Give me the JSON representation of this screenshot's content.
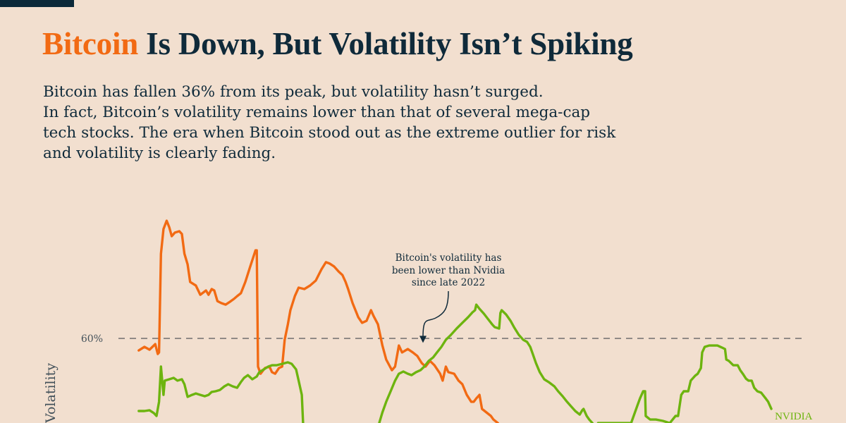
{
  "header": {
    "title_accent": "Bitcoin",
    "title_rest": " Is Down, But Volatility Isn’t Spiking",
    "subtitle_lines": [
      "Bitcoin has fallen 36% from its peak, but volatility hasn’t surged.",
      "In fact, Bitcoin’s volatility remains lower than that of several mega-cap",
      "tech stocks. The era when Bitcoin stood out as the extreme outlier for risk",
      "and volatility is clearly fading."
    ]
  },
  "colors": {
    "bitcoin": "#f26a13",
    "nvidia": "#6db40f",
    "text": "#0f2a3a",
    "accent": "#f26a13",
    "background": "#f2dfcf",
    "reference_line": "#55585a"
  },
  "chart_data": {
    "type": "line",
    "title": "Bitcoin Is Down, But Volatility Isn’t Spiking",
    "xlabel": "",
    "ylabel": "Volatility",
    "y_ticks": [
      {
        "value": 60,
        "label": "60%"
      }
    ],
    "reference_lines": [
      {
        "value": 60,
        "style": "dashed"
      }
    ],
    "ylim": [
      17,
      125
    ],
    "xlim": [
      0,
      100
    ],
    "x_unit": "time index (unlabeled in crop)",
    "annotation": {
      "lines": [
        "Bitcoin's volatility has",
        "been lower than Nvidia",
        "since late 2022"
      ],
      "target": {
        "x": 45,
        "y": 57
      }
    },
    "series": [
      {
        "name": "Bitcoin",
        "label": "",
        "color": "#f26a13",
        "segments": [
          [
            [
              0.2,
              53.9
            ],
            [
              1.1,
              55.7
            ],
            [
              1.9,
              54.3
            ],
            [
              2.8,
              57.1
            ],
            [
              3.2,
              52.1
            ],
            [
              3.4,
              52.9
            ],
            [
              3.7,
              102.9
            ],
            [
              4.1,
              115.4
            ],
            [
              4.6,
              119.6
            ],
            [
              5,
              116.4
            ],
            [
              5.4,
              111.8
            ],
            [
              5.9,
              113.6
            ],
            [
              6.6,
              114.3
            ],
            [
              7,
              112.9
            ],
            [
              7.4,
              102.9
            ],
            [
              7.9,
              97.5
            ],
            [
              8.3,
              88.6
            ],
            [
              9.2,
              86.8
            ],
            [
              9.9,
              82.1
            ],
            [
              10.8,
              84.3
            ],
            [
              11.2,
              82.1
            ],
            [
              11.7,
              85
            ],
            [
              12.1,
              84.3
            ],
            [
              12.6,
              78.9
            ],
            [
              13.2,
              77.9
            ],
            [
              13.9,
              77.1
            ],
            [
              14.6,
              78.6
            ],
            [
              15.2,
              80
            ],
            [
              15.7,
              81.4
            ],
            [
              16.3,
              82.9
            ],
            [
              17,
              88.6
            ],
            [
              17.7,
              95.7
            ],
            [
              18.6,
              104.6
            ],
            [
              18.8,
              104.6
            ],
            [
              19,
              45.7
            ],
            [
              19.4,
              42.1
            ],
            [
              20.1,
              45
            ],
            [
              20.8,
              45.7
            ],
            [
              21.2,
              42.9
            ],
            [
              21.7,
              42.1
            ],
            [
              22.3,
              45
            ],
            [
              22.8,
              45.7
            ],
            [
              23.2,
              59.3
            ],
            [
              23.7,
              67.1
            ],
            [
              24.1,
              74.3
            ],
            [
              24.8,
              81.4
            ],
            [
              25.4,
              85.7
            ],
            [
              26.3,
              85
            ],
            [
              27.2,
              86.8
            ],
            [
              28.1,
              89.3
            ],
            [
              29,
              95
            ],
            [
              29.7,
              98.6
            ],
            [
              30.3,
              97.9
            ],
            [
              31,
              96.4
            ],
            [
              31.7,
              93.9
            ],
            [
              32.3,
              92.1
            ],
            [
              32.8,
              88.6
            ],
            [
              33.2,
              85
            ],
            [
              33.9,
              77.9
            ],
            [
              34.8,
              70.7
            ],
            [
              35.4,
              67.9
            ],
            [
              36.1,
              68.9
            ],
            [
              36.8,
              74.3
            ],
            [
              37.2,
              71.4
            ],
            [
              37.9,
              67.1
            ],
            [
              38.6,
              56.4
            ],
            [
              39.2,
              49.3
            ],
            [
              40.1,
              43.9
            ],
            [
              40.6,
              45.7
            ],
            [
              41.2,
              56.4
            ],
            [
              41.7,
              52.9
            ],
            [
              42.6,
              54.6
            ],
            [
              43.4,
              52.9
            ],
            [
              44.1,
              51.1
            ],
            [
              44.8,
              47.5
            ],
            [
              45.4,
              45.7
            ],
            [
              46.1,
              48.6
            ],
            [
              46.8,
              46.4
            ],
            [
              47.7,
              42.1
            ],
            [
              48.1,
              38.6
            ],
            [
              48.6,
              45.7
            ],
            [
              49,
              42.9
            ],
            [
              49.9,
              42.1
            ],
            [
              50.6,
              38.6
            ],
            [
              51.2,
              36.8
            ],
            [
              51.9,
              31.4
            ],
            [
              52.6,
              27.9
            ],
            [
              53,
              27.9
            ],
            [
              53.4,
              29.6
            ],
            [
              53.9,
              31.4
            ],
            [
              54.3,
              24.3
            ],
            [
              55,
              22.5
            ],
            [
              55.7,
              20.7
            ],
            [
              56.1,
              18.9
            ],
            [
              56.8,
              17.1
            ]
          ]
        ]
      },
      {
        "name": "NVIDIA",
        "label": "NVIDIA",
        "color": "#6db40f",
        "segments": [
          [
            [
              0.2,
              23.2
            ],
            [
              1.1,
              23.2
            ],
            [
              1.9,
              23.6
            ],
            [
              2.6,
              22.1
            ],
            [
              3,
              20.7
            ],
            [
              3.4,
              27.9
            ],
            [
              3.7,
              45.7
            ],
            [
              4.1,
              31.4
            ],
            [
              4.3,
              38.6
            ],
            [
              5,
              39.3
            ],
            [
              5.7,
              40
            ],
            [
              6.3,
              38.6
            ],
            [
              7,
              39.3
            ],
            [
              7.4,
              36.8
            ],
            [
              7.9,
              30.4
            ],
            [
              8.6,
              31.4
            ],
            [
              9.2,
              32.1
            ],
            [
              9.9,
              31.4
            ],
            [
              10.6,
              30.7
            ],
            [
              11.2,
              31.4
            ],
            [
              11.7,
              32.9
            ],
            [
              12.3,
              33.2
            ],
            [
              13,
              33.9
            ],
            [
              13.7,
              35.7
            ],
            [
              14.3,
              36.8
            ],
            [
              15,
              35.7
            ],
            [
              15.7,
              35
            ],
            [
              16.3,
              37.9
            ],
            [
              16.8,
              40
            ],
            [
              17.4,
              41.4
            ],
            [
              18.1,
              39.3
            ],
            [
              18.8,
              40.7
            ],
            [
              19.2,
              42.9
            ],
            [
              19.9,
              44.3
            ],
            [
              20.6,
              45.7
            ],
            [
              21.2,
              46.4
            ],
            [
              21.9,
              46.4
            ],
            [
              22.8,
              47.1
            ],
            [
              23.7,
              47.9
            ],
            [
              24.3,
              47.1
            ],
            [
              25,
              44.3
            ],
            [
              25.4,
              38.6
            ],
            [
              25.9,
              31.4
            ],
            [
              26.1,
              17.1
            ]
          ],
          [
            [
              38.1,
              17.1
            ],
            [
              38.6,
              22.5
            ],
            [
              39.2,
              27.9
            ],
            [
              39.9,
              33.2
            ],
            [
              40.6,
              38.6
            ],
            [
              41.2,
              42.1
            ],
            [
              41.9,
              43.2
            ],
            [
              42.6,
              42.1
            ],
            [
              43.2,
              41.4
            ],
            [
              43.9,
              42.9
            ],
            [
              44.6,
              43.9
            ],
            [
              45.2,
              45.7
            ],
            [
              45.9,
              48.6
            ],
            [
              46.6,
              50.4
            ],
            [
              47.2,
              52.9
            ],
            [
              47.9,
              55.7
            ],
            [
              48.6,
              59.3
            ],
            [
              49.4,
              61.8
            ],
            [
              50.3,
              65
            ],
            [
              51.2,
              67.9
            ],
            [
              52.1,
              70.7
            ],
            [
              52.8,
              73.2
            ],
            [
              53.2,
              74.3
            ],
            [
              53.4,
              77.1
            ],
            [
              53.9,
              75
            ],
            [
              54.6,
              72.5
            ],
            [
              55.2,
              70
            ],
            [
              55.9,
              67.1
            ],
            [
              56.3,
              65.7
            ],
            [
              57,
              65
            ],
            [
              57.2,
              72.9
            ],
            [
              57.4,
              74.3
            ],
            [
              58.1,
              72.1
            ],
            [
              58.8,
              68.9
            ],
            [
              59.4,
              65.4
            ],
            [
              60.1,
              61.8
            ],
            [
              60.8,
              59.3
            ],
            [
              61.4,
              58.2
            ],
            [
              61.9,
              55.7
            ],
            [
              62.3,
              52.1
            ],
            [
              62.8,
              47.5
            ],
            [
              63.4,
              42.9
            ],
            [
              64.1,
              39.3
            ],
            [
              64.8,
              37.9
            ],
            [
              65.7,
              35.7
            ],
            [
              66.3,
              33.2
            ],
            [
              67,
              30.7
            ],
            [
              67.7,
              27.9
            ],
            [
              68.3,
              25.7
            ],
            [
              69,
              23.2
            ],
            [
              69.7,
              21.4
            ],
            [
              70.1,
              23.6
            ],
            [
              70.3,
              24.3
            ],
            [
              70.8,
              20.7
            ],
            [
              71.2,
              18.9
            ],
            [
              71.7,
              17.1
            ]
          ],
          [
            [
              72.6,
              17.1
            ],
            [
              77.8,
              17.1
            ],
            [
              78.8,
              26.1
            ],
            [
              79.2,
              29.6
            ],
            [
              79.7,
              33.2
            ],
            [
              80,
              33.2
            ],
            [
              80.1,
              20.7
            ],
            [
              80.8,
              18.9
            ],
            [
              81.7,
              18.9
            ],
            [
              82.8,
              18.2
            ],
            [
              83.9,
              17.1
            ],
            [
              84.8,
              20.7
            ],
            [
              85.2,
              20.7
            ],
            [
              85.7,
              31.4
            ],
            [
              86.1,
              33.2
            ],
            [
              86.8,
              33.2
            ],
            [
              87.2,
              38.6
            ],
            [
              87.9,
              41.1
            ],
            [
              88.3,
              42.1
            ],
            [
              88.8,
              45
            ],
            [
              89,
              52.9
            ],
            [
              89.4,
              55.7
            ],
            [
              90.1,
              56.4
            ],
            [
              90.8,
              56.4
            ],
            [
              91.4,
              56.4
            ],
            [
              92.1,
              55.4
            ],
            [
              92.6,
              54.6
            ],
            [
              92.8,
              49.3
            ],
            [
              93.2,
              48.6
            ],
            [
              93.9,
              46.4
            ],
            [
              94.6,
              46.4
            ],
            [
              95,
              43.9
            ],
            [
              95.4,
              42.1
            ],
            [
              95.9,
              39.6
            ],
            [
              96.3,
              38.6
            ],
            [
              96.8,
              38.6
            ],
            [
              97.2,
              35
            ],
            [
              97.7,
              33.2
            ],
            [
              98.3,
              32.5
            ],
            [
              99,
              29.6
            ],
            [
              99.4,
              27.9
            ],
            [
              99.9,
              24.3
            ]
          ]
        ]
      }
    ]
  }
}
